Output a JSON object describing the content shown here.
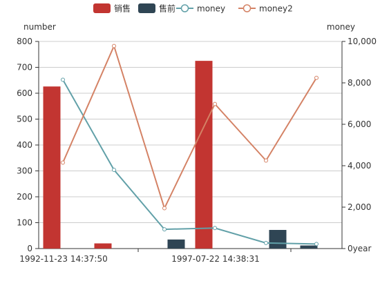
{
  "chart_data": {
    "type": "bar",
    "left_axis": {
      "label": "number",
      "min": 0,
      "max": 800,
      "ticks": [
        "0",
        "100",
        "200",
        "300",
        "400",
        "500",
        "600",
        "700",
        "800"
      ]
    },
    "right_axis": {
      "label": "money",
      "min": 0,
      "max": 10000,
      "ticks": [
        "0year",
        "2,000",
        "4,000",
        "6,000",
        "8,000",
        "10,000"
      ]
    },
    "x_axis": {
      "tick_labels": [
        "1992-11-23 14:37:50",
        "1997-07-22 14:38:31"
      ]
    },
    "legend": {
      "position": "top-center",
      "items": [
        {
          "name": "销售",
          "kind": "bar",
          "color": "#c23531"
        },
        {
          "name": "售前",
          "kind": "bar",
          "color": "#2f4554"
        },
        {
          "name": "money",
          "kind": "line",
          "color": "#61a0a8"
        },
        {
          "name": "money2",
          "kind": "line",
          "color": "#d48265"
        }
      ]
    },
    "series": [
      {
        "name": "销售",
        "axis": "left",
        "type": "bar",
        "values": [
          626,
          20,
          0,
          0,
          725,
          0,
          0
        ]
      },
      {
        "name": "售前",
        "axis": "left",
        "type": "bar",
        "values": [
          0,
          0,
          0,
          35,
          0,
          72,
          12
        ]
      },
      {
        "name": "money",
        "axis": "right",
        "type": "line",
        "values": [
          8150,
          3800,
          930,
          990,
          270,
          220
        ]
      },
      {
        "name": "money2",
        "axis": "right",
        "type": "line",
        "values": [
          4150,
          9780,
          1950,
          6980,
          4250,
          8240
        ]
      }
    ],
    "grid": true
  }
}
